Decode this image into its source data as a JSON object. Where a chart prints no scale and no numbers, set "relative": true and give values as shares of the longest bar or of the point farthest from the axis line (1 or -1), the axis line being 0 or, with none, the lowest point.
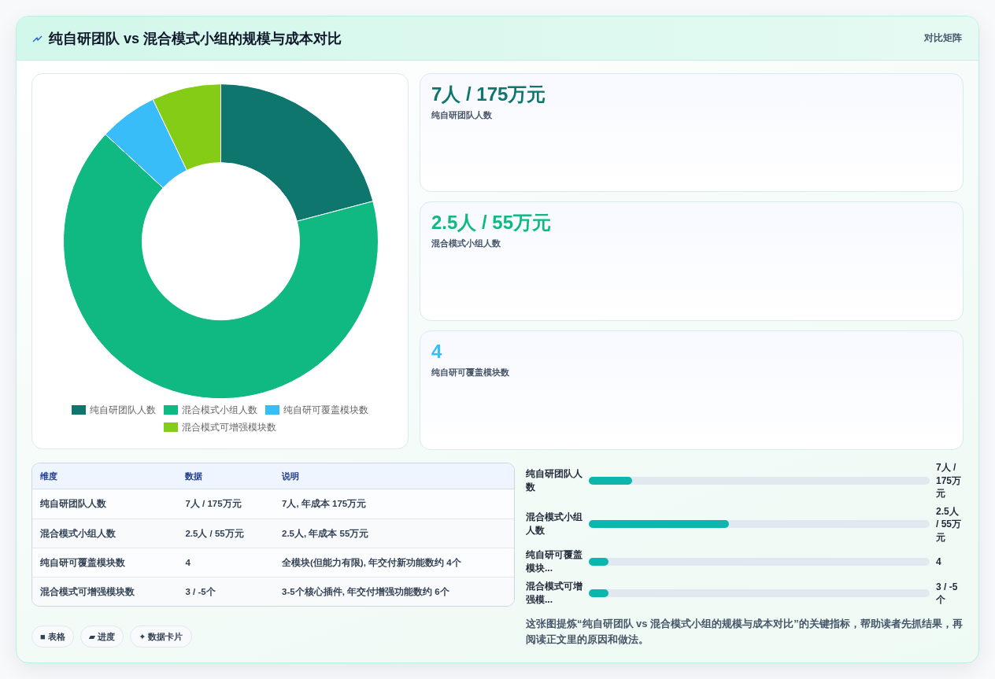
{
  "chart_data": [
    {
      "type": "donut",
      "title": "纯自研团队 vs 混合模式小组的规模与成本对比",
      "categories": [
        "纯自研团队人数",
        "混合模式小组人数",
        "纯自研可覆盖模块数",
        "混合模式可增强模块数"
      ],
      "values": [
        20.9,
        66.0,
        6.0,
        7.1
      ],
      "colors": [
        "#0f766e",
        "#10b981",
        "#38bdf8",
        "#84cc16"
      ],
      "legend": "bottom"
    },
    {
      "type": "other",
      "subtitle": "对比矩阵",
      "categories": [
        "纯自研团队人数",
        "混合模式小组人数",
        "纯自研可覆盖模块数"
      ],
      "value_labels": [
        "7人 / 175万元",
        "2.5人 / 55万元",
        "4"
      ]
    },
    {
      "type": "other",
      "categories": [
        "维度",
        "数据",
        "说明"
      ],
      "cell_labels": [
        [
          "纯自研团队人数",
          "7人 / 175万元",
          "7人, 年成本 175万元"
        ],
        [
          "混合模式小组人数",
          "2.5人 / 55万元",
          "2.5人, 年成本 55万元"
        ],
        [
          "纯自研可覆盖模块数",
          "4",
          "全模块(但能力有限), 年交付新功能数约 4个"
        ],
        [
          "混合模式可增强模块数",
          "3 / -5个",
          "3-5个核心插件, 年交付增强功能数约 6个"
        ]
      ],
      "annotations": [
        "■ 表格",
        "▰ 进度",
        "✦ 数据卡片"
      ]
    },
    {
      "type": "bar",
      "orientation": "horizontal",
      "relative": true,
      "categories": [
        "纯自研团队人数",
        "混合模式小组人数",
        "纯自研可覆盖模块...",
        "混合模式可增强模..."
      ],
      "values": [
        0.31,
        1,
        0.14,
        0.14
      ],
      "color": "#0db5ad",
      "annotations": [
        "7人 / 175万元",
        "2.5人 / 55万元",
        "4",
        "3 / -5个",
        "这张图提炼“纯自研团队 vs 混合模式小组的规模与成本对比”的关键指标，帮助读者先抓结果，再阅读正文里的原因和做法。"
      ]
    }
  ]
}
